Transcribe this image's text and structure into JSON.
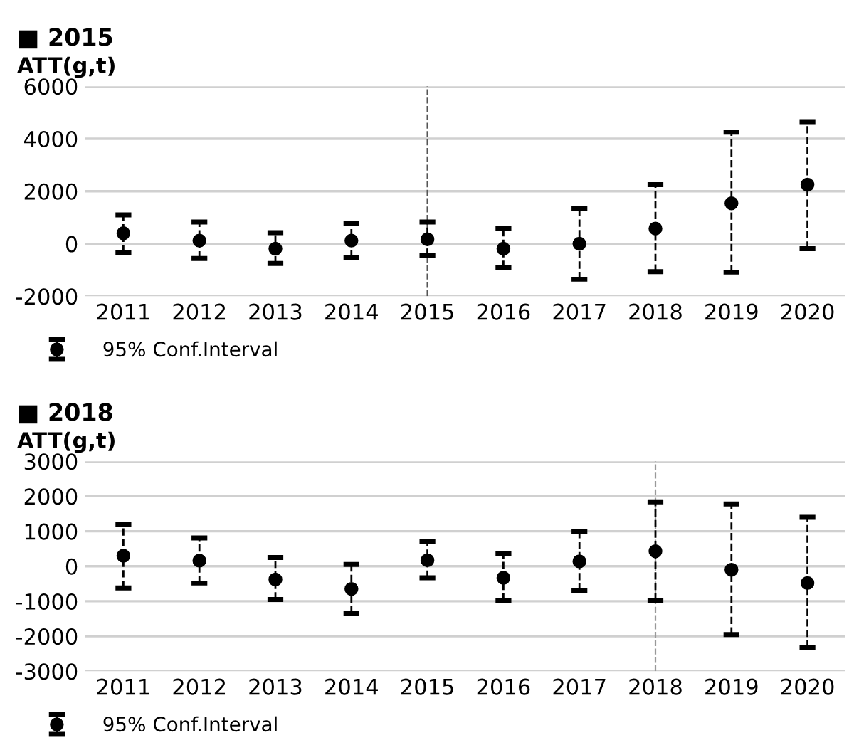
{
  "chart_data": [
    {
      "type": "scatter",
      "title": "■ 2015",
      "ylabel": "ATT(g,t)",
      "categories": [
        "2011",
        "2012",
        "2013",
        "2014",
        "2015",
        "2016",
        "2017",
        "2018",
        "2019",
        "2020"
      ],
      "series": [
        {
          "name": "95% Conf.Interval",
          "color": "#000000",
          "values": [
            400,
            120,
            -190,
            120,
            170,
            -190,
            0,
            580,
            1540,
            2250
          ],
          "errors": [
            [
              -330,
              1100
            ],
            [
              -560,
              830
            ],
            [
              -750,
              420
            ],
            [
              -520,
              770
            ],
            [
              -460,
              830
            ],
            [
              -920,
              600
            ],
            [
              -1350,
              1350
            ],
            [
              -1060,
              2250
            ],
            [
              -1080,
              4250
            ],
            [
              -190,
              4650
            ]
          ]
        }
      ],
      "ylim": [
        -2000,
        6000
      ],
      "yticks": [
        -2000,
        0,
        2000,
        4000,
        6000
      ],
      "grid": "y",
      "legend": "bottom left",
      "marker": "circle",
      "line_style": "dashed",
      "ref_lines": [
        {
          "axis": "x",
          "value": "2015",
          "color": "#555555",
          "line_style": "dashed"
        }
      ]
    },
    {
      "type": "scatter",
      "title": "■ 2018",
      "ylabel": "ATT(g,t)",
      "categories": [
        "2011",
        "2012",
        "2013",
        "2014",
        "2015",
        "2016",
        "2017",
        "2018",
        "2019",
        "2020"
      ],
      "series": [
        {
          "name": "95% Conf.Interval",
          "color": "#000000",
          "values": [
            300,
            160,
            -380,
            -650,
            170,
            -330,
            140,
            430,
            -100,
            -480
          ],
          "errors": [
            [
              -620,
              1200
            ],
            [
              -480,
              810
            ],
            [
              -950,
              250
            ],
            [
              -1350,
              50
            ],
            [
              -330,
              700
            ],
            [
              -980,
              370
            ],
            [
              -700,
              1000
            ],
            [
              -980,
              1840
            ],
            [
              -1950,
              1780
            ],
            [
              -2320,
              1400
            ]
          ]
        }
      ],
      "ylim": [
        -3000,
        3000
      ],
      "yticks": [
        -3000,
        -2000,
        -1000,
        0,
        1000,
        2000,
        3000
      ],
      "grid": "y",
      "legend": "bottom left",
      "marker": "circle",
      "line_style": "dashed",
      "ref_lines": [
        {
          "axis": "x",
          "value": "2018",
          "color": "#999999",
          "line_style": "dashed"
        }
      ]
    }
  ]
}
